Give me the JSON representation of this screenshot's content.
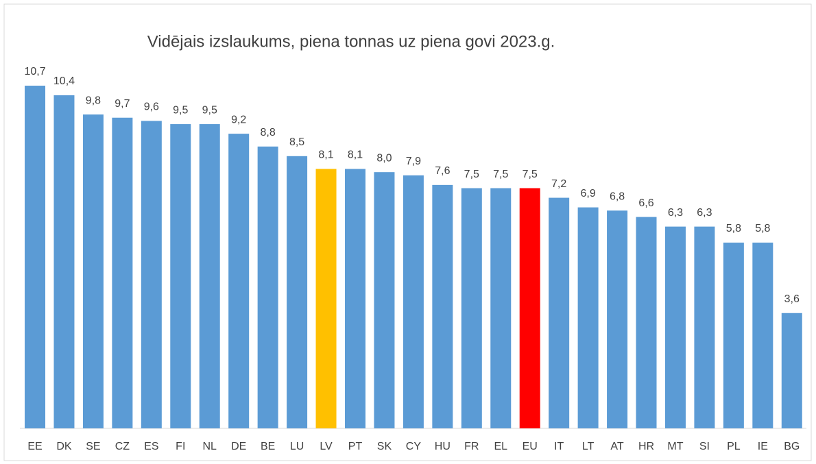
{
  "chart_data": {
    "type": "bar",
    "title": "Vidējais  izslaukums, piena tonnas uz piena govi 2023.g.",
    "categories": [
      "EE",
      "DK",
      "SE",
      "CZ",
      "ES",
      "FI",
      "NL",
      "DE",
      "BE",
      "LU",
      "LV",
      "PT",
      "SK",
      "CY",
      "HU",
      "FR",
      "EL",
      "EU",
      "IT",
      "LT",
      "AT",
      "HR",
      "MT",
      "SI",
      "PL",
      "IE",
      "BG"
    ],
    "values": [
      10.7,
      10.4,
      9.8,
      9.7,
      9.6,
      9.5,
      9.5,
      9.2,
      8.8,
      8.5,
      8.1,
      8.1,
      8.0,
      7.9,
      7.6,
      7.5,
      7.5,
      7.5,
      7.2,
      6.9,
      6.8,
      6.6,
      6.3,
      6.3,
      5.8,
      5.8,
      3.6
    ],
    "value_labels": [
      "10,7",
      "10,4",
      "9,8",
      "9,7",
      "9,6",
      "9,5",
      "9,5",
      "9,2",
      "8,8",
      "8,5",
      "8,1",
      "8,1",
      "8,0",
      "7,9",
      "7,6",
      "7,5",
      "7,5",
      "7,5",
      "7,2",
      "6,9",
      "6,8",
      "6,6",
      "6,3",
      "6,3",
      "5,8",
      "5,8",
      "3,6"
    ],
    "colors": [
      "#5b9bd5",
      "#5b9bd5",
      "#5b9bd5",
      "#5b9bd5",
      "#5b9bd5",
      "#5b9bd5",
      "#5b9bd5",
      "#5b9bd5",
      "#5b9bd5",
      "#5b9bd5",
      "#ffc000",
      "#5b9bd5",
      "#5b9bd5",
      "#5b9bd5",
      "#5b9bd5",
      "#5b9bd5",
      "#5b9bd5",
      "#ff0000",
      "#5b9bd5",
      "#5b9bd5",
      "#5b9bd5",
      "#5b9bd5",
      "#5b9bd5",
      "#5b9bd5",
      "#5b9bd5",
      "#5b9bd5",
      "#5b9bd5"
    ]
  }
}
